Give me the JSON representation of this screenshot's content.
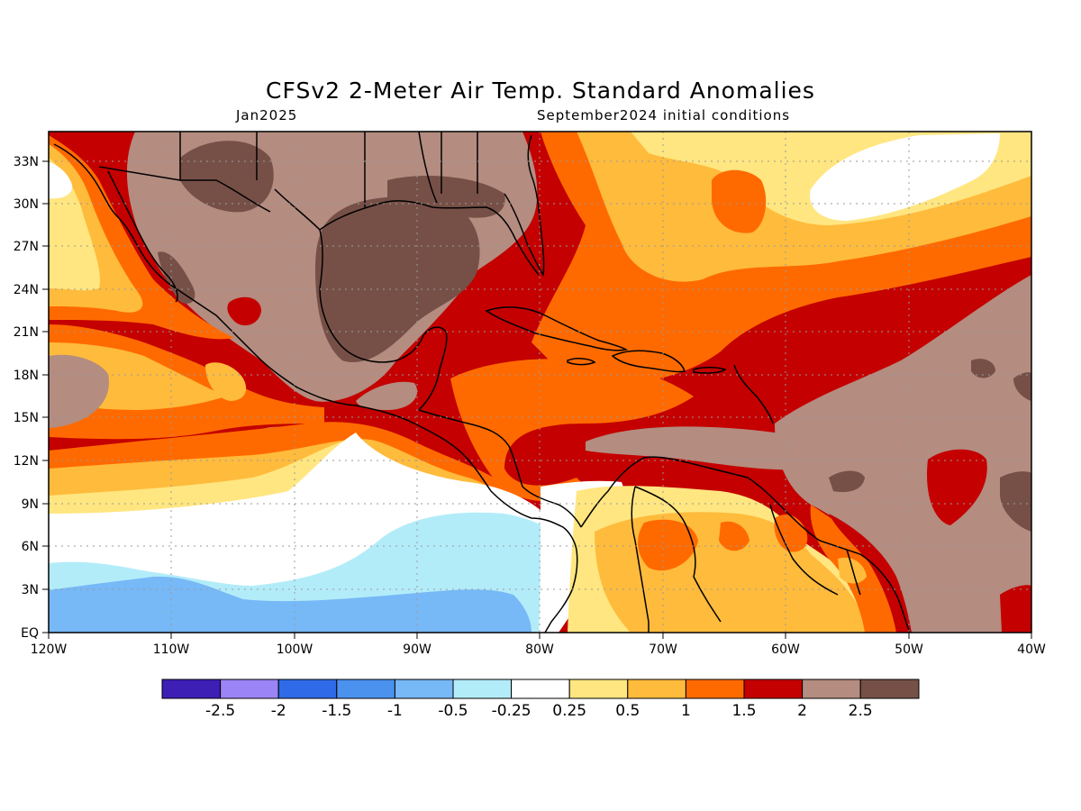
{
  "title": "CFSv2 2-Meter Air Temp. Standard Anomalies",
  "valid_month": "Jan2025",
  "init_conditions": "September2024 initial conditions",
  "axes": {
    "lat_labels": [
      "33N",
      "30N",
      "27N",
      "24N",
      "21N",
      "18N",
      "15N",
      "12N",
      "9N",
      "6N",
      "3N",
      "EQ"
    ],
    "lat_values": [
      33,
      30,
      27,
      24,
      21,
      18,
      15,
      12,
      9,
      6,
      3,
      0
    ],
    "lon_labels": [
      "120W",
      "110W",
      "100W",
      "90W",
      "80W",
      "70W",
      "60W",
      "50W",
      "40W"
    ],
    "lon_values": [
      -120,
      -110,
      -100,
      -90,
      -80,
      -70,
      -60,
      -50,
      -40
    ],
    "lat_range": [
      0,
      35
    ],
    "lon_range": [
      -120,
      -40
    ],
    "grid": true
  },
  "colorbar": {
    "colors": [
      "#3d1fb5",
      "#9b84f5",
      "#2f6be8",
      "#4b92ef",
      "#77b8f6",
      "#b3ecf9",
      "#ffffff",
      "#ffe680",
      "#ffbb3c",
      "#ff6a00",
      "#c40000",
      "#b48c80",
      "#765047"
    ],
    "labels": [
      "-2.5",
      "-2",
      "-1.5",
      "-1",
      "-0.5",
      "-0.25",
      "0.25",
      "0.5",
      "1",
      "1.5",
      "2",
      "2.5"
    ]
  },
  "colors": {
    "background": "#ffffff",
    "grid": "#9a9a9a",
    "coastline": "#000000"
  }
}
